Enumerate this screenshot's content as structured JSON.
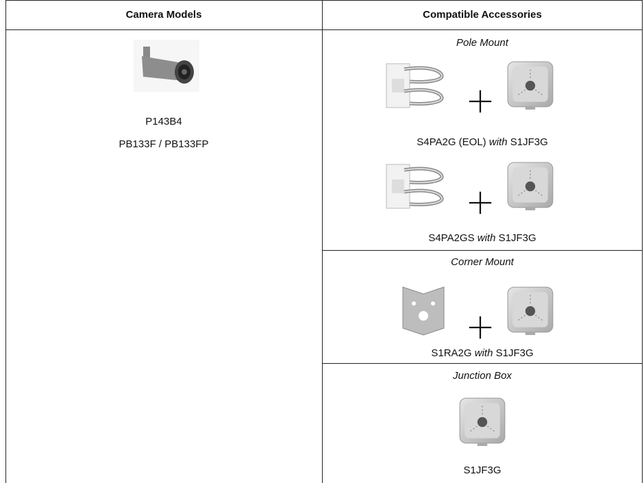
{
  "table": {
    "headers": [
      "Camera Models",
      "Compatible Accessories"
    ],
    "cameras": [
      "P143B4",
      "PB133F / PB133FP"
    ],
    "sections": [
      {
        "title": "Pole Mount",
        "items": [
          {
            "part": "S4PA2G (EOL)",
            "joiner": "with",
            "accessory": "S1JF3G"
          },
          {
            "part": "S4PA2GS",
            "joiner": "with",
            "accessory": "S1JF3G"
          }
        ]
      },
      {
        "title": "Corner Mount",
        "items": [
          {
            "part": "S1RA2G",
            "joiner": "with",
            "accessory": "S1JF3G"
          }
        ]
      },
      {
        "title": "Junction Box",
        "items": [
          {
            "part": "S1JF3G"
          }
        ]
      }
    ]
  }
}
